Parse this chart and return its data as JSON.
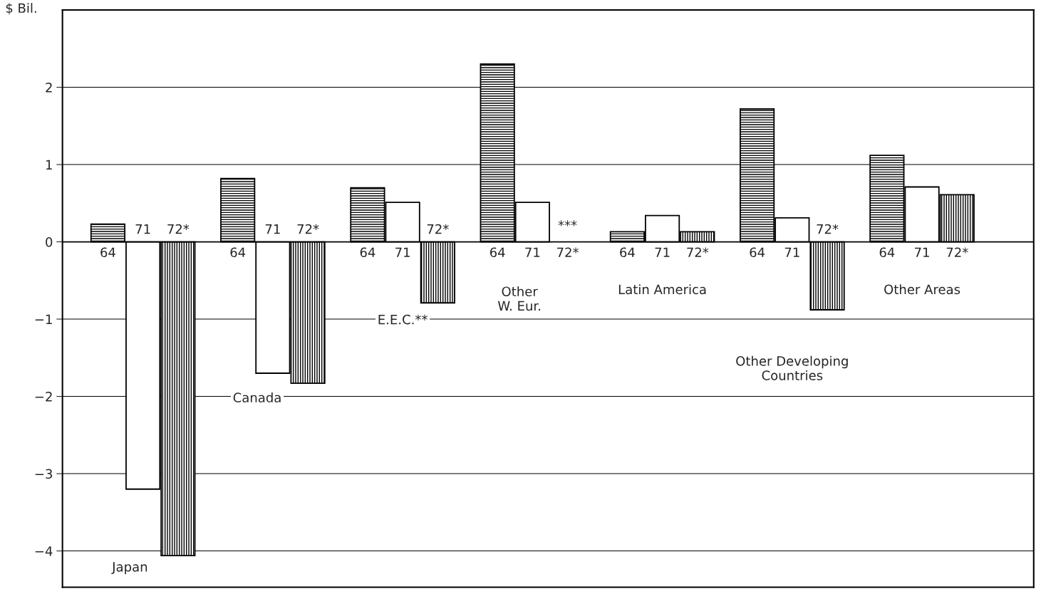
{
  "chart_data": {
    "type": "bar",
    "ylabel": "$ Bil.",
    "categories": [
      "Japan",
      "Canada",
      "E.E.C.**",
      "Other\nW. Eur.",
      "Latin America",
      "Other Developing\nCountries",
      "Other Areas"
    ],
    "series": [
      {
        "name": "64",
        "color": "#000000",
        "values": [
          0.23,
          0.82,
          0.7,
          2.3,
          0.13,
          1.72,
          1.12
        ]
      },
      {
        "name": "71",
        "color": "#ffffff",
        "values": [
          -3.2,
          -1.7,
          0.51,
          0.51,
          0.34,
          0.31,
          0.71
        ]
      },
      {
        "name": "72*",
        "color": "#000000",
        "values": [
          -4.06,
          -1.83,
          -0.79,
          null,
          0.13,
          -0.88,
          0.61
        ],
        "value_labels": [
          null,
          null,
          null,
          "***",
          null,
          null,
          null
        ]
      }
    ],
    "ylim": [
      -4.47,
      3.0
    ],
    "yticks": [
      {
        "value": -4,
        "label": "−4"
      },
      {
        "value": -3,
        "label": "−3"
      },
      {
        "value": -2,
        "label": "−2"
      },
      {
        "value": -1,
        "label": "−1"
      },
      0,
      1,
      2
    ],
    "grid": "y",
    "legend": false
  }
}
